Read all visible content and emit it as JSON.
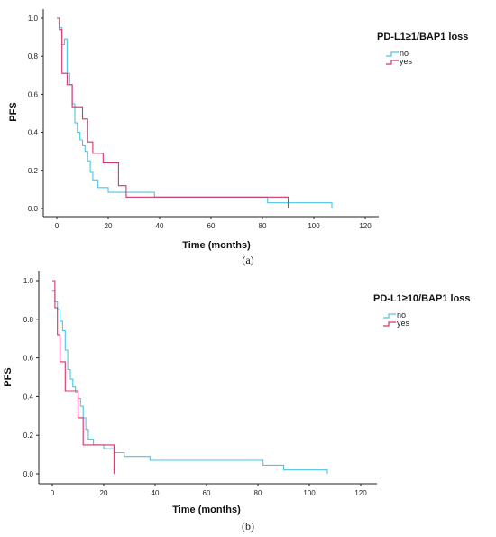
{
  "chart_data": [
    {
      "type": "line",
      "panel_label": "(a)",
      "xlabel": "Time (months)",
      "ylabel": "PFS",
      "xlim": [
        0,
        120
      ],
      "ylim": [
        0,
        1.0
      ],
      "x_ticks": [
        0,
        20,
        40,
        60,
        80,
        100,
        120
      ],
      "y_ticks": [
        0.0,
        0.2,
        0.4,
        0.6,
        0.8,
        1.0
      ],
      "grid": false,
      "legend": {
        "title": "PD-L1≥1/BAP1 loss",
        "position": "top-right"
      },
      "series": [
        {
          "name": "no",
          "color": "#4fc3e8",
          "x": [
            0,
            1,
            2,
            3,
            4,
            5,
            6,
            7,
            8,
            9,
            10,
            11,
            12,
            13,
            14,
            16,
            20,
            38,
            82,
            107
          ],
          "y": [
            1.0,
            0.95,
            0.86,
            0.89,
            0.71,
            0.65,
            0.55,
            0.45,
            0.4,
            0.36,
            0.33,
            0.3,
            0.25,
            0.19,
            0.15,
            0.11,
            0.085,
            0.06,
            0.03,
            0.0
          ]
        },
        {
          "name": "yes",
          "color": "#d6336c",
          "x": [
            0,
            1,
            2,
            4,
            6,
            10,
            12,
            14,
            18,
            24,
            27,
            82,
            90
          ],
          "y": [
            1.0,
            0.94,
            0.71,
            0.65,
            0.53,
            0.47,
            0.35,
            0.29,
            0.24,
            0.12,
            0.06,
            0.06,
            0.0
          ]
        }
      ]
    },
    {
      "type": "line",
      "panel_label": "(b)",
      "xlabel": "Time (months)",
      "ylabel": "PFS",
      "xlim": [
        0,
        120
      ],
      "ylim": [
        0,
        1.0
      ],
      "x_ticks": [
        0,
        20,
        40,
        60,
        80,
        100,
        120
      ],
      "y_ticks": [
        0.0,
        0.2,
        0.4,
        0.6,
        0.8,
        1.0
      ],
      "grid": false,
      "legend": {
        "title": "PD-L1≥10/BAP1 loss",
        "position": "top-right"
      },
      "series": [
        {
          "name": "no",
          "color": "#4fc3e8",
          "x": [
            0,
            1,
            2,
            3,
            4,
            5,
            6,
            7,
            8,
            9,
            10,
            11,
            12,
            13,
            14,
            16,
            20,
            24,
            28,
            38,
            82,
            90,
            107
          ],
          "y": [
            0.95,
            0.89,
            0.85,
            0.79,
            0.74,
            0.64,
            0.54,
            0.49,
            0.45,
            0.42,
            0.39,
            0.35,
            0.29,
            0.23,
            0.18,
            0.15,
            0.13,
            0.11,
            0.09,
            0.07,
            0.045,
            0.02,
            0.0
          ]
        },
        {
          "name": "yes",
          "color": "#d6336c",
          "x": [
            0,
            1,
            2,
            3,
            5,
            9,
            10,
            12,
            18,
            24
          ],
          "y": [
            1.0,
            0.86,
            0.72,
            0.58,
            0.43,
            0.43,
            0.29,
            0.15,
            0.15,
            0.0
          ]
        }
      ]
    }
  ]
}
